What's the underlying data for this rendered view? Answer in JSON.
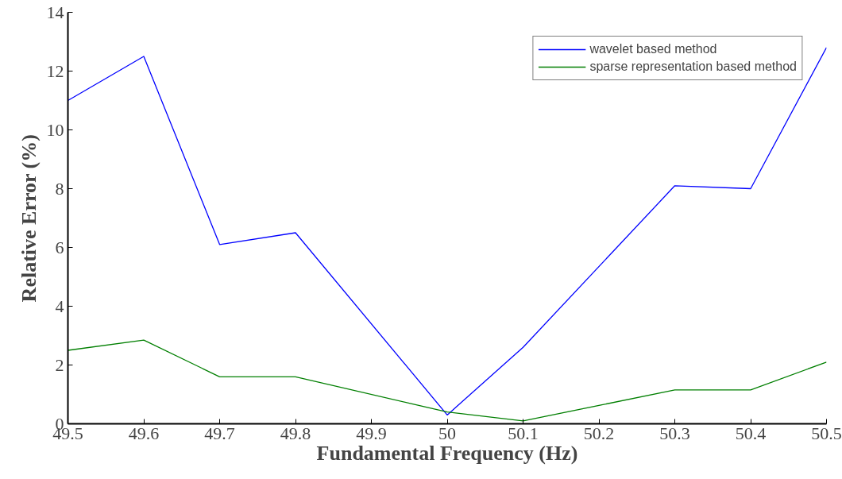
{
  "chart_data": {
    "type": "line",
    "xlabel": "Fundamental Frequency (Hz)",
    "ylabel": "Relative Error (%)",
    "x": [
      49.5,
      49.6,
      49.7,
      49.8,
      50,
      50.1,
      50.3,
      50.4,
      50.5
    ],
    "series": [
      {
        "name": "wavelet based method",
        "color": "#0000ff",
        "values": [
          11.0,
          12.5,
          6.1,
          6.5,
          0.3,
          2.6,
          8.1,
          8.0,
          12.8
        ]
      },
      {
        "name": "sparse representation based method",
        "color": "#007f00",
        "values": [
          2.5,
          2.85,
          1.6,
          1.6,
          0.4,
          0.1,
          1.15,
          1.15,
          2.1
        ]
      }
    ],
    "xlim": [
      49.5,
      50.5
    ],
    "xticks": [
      49.5,
      49.6,
      49.7,
      49.8,
      49.9,
      50,
      50.1,
      50.2,
      50.3,
      50.4,
      50.5
    ],
    "ylim": [
      0,
      14
    ],
    "yticks": [
      0,
      2,
      4,
      6,
      8,
      10,
      12,
      14
    ],
    "grid": false,
    "legend": "top right",
    "marker": "none",
    "line_style": "solid"
  }
}
